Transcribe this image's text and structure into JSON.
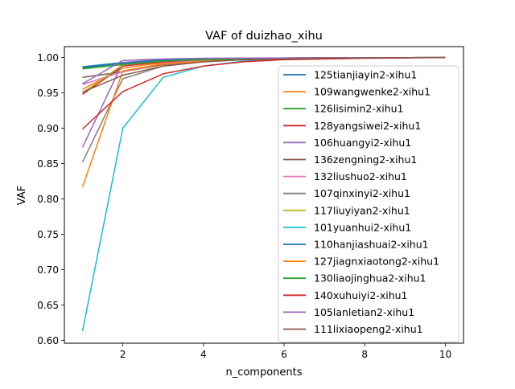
{
  "chart_data": {
    "type": "line",
    "title": "VAF of duizhao_xihu",
    "xlabel": "n_components",
    "ylabel": "VAF",
    "xlim": [
      0.55,
      10.45
    ],
    "ylim": [
      0.596,
      1.0155
    ],
    "xticks": [
      2,
      4,
      6,
      8,
      10
    ],
    "xtick_labels": [
      "2",
      "4",
      "6",
      "8",
      "10"
    ],
    "yticks": [
      0.6,
      0.65,
      0.7,
      0.75,
      0.8,
      0.85,
      0.9,
      0.95,
      1.0
    ],
    "ytick_labels": [
      "0.60",
      "0.65",
      "0.70",
      "0.75",
      "0.80",
      "0.85",
      "0.90",
      "0.95",
      "1.00"
    ],
    "grid": false,
    "legend_position": "right",
    "x": [
      1,
      2,
      3,
      4,
      5,
      6,
      7,
      8,
      9,
      10
    ],
    "series": [
      {
        "name": "125tianjiayin2-xihu1",
        "color": "#1f77b4",
        "values": [
          0.987,
          0.993,
          0.997,
          0.998,
          0.999,
          0.9993,
          0.9996,
          0.9998,
          0.9999,
          1.0
        ]
      },
      {
        "name": "109wangwenke2-xihu1",
        "color": "#ff7f0e",
        "values": [
          0.955,
          0.985,
          0.993,
          0.996,
          0.998,
          0.999,
          0.9995,
          0.9997,
          0.9999,
          1.0
        ]
      },
      {
        "name": "126lisimin2-xihu1",
        "color": "#2ca02c",
        "values": [
          0.985,
          0.992,
          0.996,
          0.998,
          0.999,
          0.9993,
          0.9996,
          0.9998,
          0.9999,
          1.0
        ]
      },
      {
        "name": "128yangsiwei2-xihu1",
        "color": "#d62728",
        "values": [
          0.948,
          0.988,
          0.994,
          0.997,
          0.998,
          0.999,
          0.9995,
          0.9997,
          0.9999,
          1.0
        ]
      },
      {
        "name": "106huangyi2-xihu1",
        "color": "#9467bd",
        "values": [
          0.873,
          0.993,
          0.996,
          0.998,
          0.999,
          0.9993,
          0.9996,
          0.9998,
          0.9999,
          1.0
        ]
      },
      {
        "name": "136zengning2-xihu1",
        "color": "#8c564b",
        "values": [
          0.972,
          0.98,
          0.99,
          0.995,
          0.997,
          0.998,
          0.999,
          0.9995,
          0.9998,
          1.0
        ]
      },
      {
        "name": "132liushuo2-xihu1",
        "color": "#e377c2",
        "values": [
          0.962,
          0.98,
          0.992,
          0.996,
          0.998,
          0.999,
          0.9995,
          0.9997,
          0.9999,
          1.0
        ]
      },
      {
        "name": "107qinxinyi2-xihu1",
        "color": "#7f7f7f",
        "values": [
          0.852,
          0.97,
          0.988,
          0.994,
          0.997,
          0.998,
          0.999,
          0.9995,
          0.9998,
          1.0
        ]
      },
      {
        "name": "117liuyiyan2-xihu1",
        "color": "#bcbd22",
        "values": [
          0.95,
          0.99,
          0.995,
          0.997,
          0.998,
          0.999,
          0.9995,
          0.9997,
          0.9999,
          1.0
        ]
      },
      {
        "name": "101yuanhui2-xihu1",
        "color": "#17becf",
        "values": [
          0.613,
          0.9,
          0.972,
          0.988,
          0.995,
          0.998,
          0.999,
          0.9995,
          0.9998,
          1.0
        ]
      },
      {
        "name": "110hanjiashuai2-xihu1",
        "color": "#1f77b4",
        "values": [
          0.986,
          0.992,
          0.996,
          0.998,
          0.999,
          0.9993,
          0.9996,
          0.9998,
          0.9999,
          1.0
        ]
      },
      {
        "name": "127jiagnxiaotong2-xihu1",
        "color": "#ff7f0e",
        "values": [
          0.817,
          0.981,
          0.991,
          0.995,
          0.997,
          0.998,
          0.999,
          0.9995,
          0.9998,
          1.0
        ]
      },
      {
        "name": "130liaojinghua2-xihu1",
        "color": "#2ca02c",
        "values": [
          0.984,
          0.99,
          0.995,
          0.997,
          0.998,
          0.999,
          0.9995,
          0.9997,
          0.9999,
          1.0
        ]
      },
      {
        "name": "140xuhuiyi2-xihu1",
        "color": "#d62728",
        "values": [
          0.899,
          0.952,
          0.977,
          0.988,
          0.994,
          0.997,
          0.998,
          0.999,
          0.9995,
          1.0
        ]
      },
      {
        "name": "105lanletian2-xihu1",
        "color": "#9467bd",
        "values": [
          0.963,
          0.996,
          0.998,
          0.999,
          0.9993,
          0.9995,
          0.9997,
          0.9998,
          0.9999,
          1.0
        ]
      },
      {
        "name": "111lixiaopeng2-xihu1",
        "color": "#8c564b",
        "values": [
          0.951,
          0.975,
          0.988,
          0.994,
          0.997,
          0.998,
          0.999,
          0.9995,
          0.9998,
          1.0
        ]
      }
    ]
  }
}
